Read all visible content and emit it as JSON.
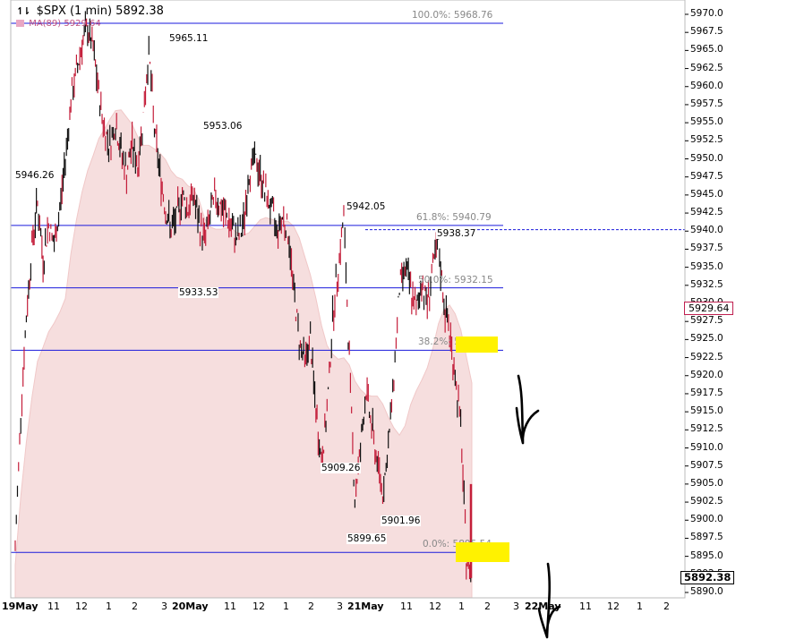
{
  "header": {
    "icon": "candlestick-icon",
    "title": "$SPX (1 min) 5892.38",
    "ma_label": "MA(89) 5929.64"
  },
  "colors": {
    "fib_line": "#1a1adc",
    "candle": "#c41e3a",
    "ma_fill": "#f6dede",
    "ma_line": "#f0c8c8",
    "highlight": "#fff200"
  },
  "current_tags": {
    "last": "5892.38",
    "ma": "5929.64"
  },
  "chart_data": {
    "type": "candlestick",
    "title": "$SPX (1 min)",
    "ylim": [
      5889,
      5971
    ],
    "y_ticks": [
      "5970.0",
      "5967.5",
      "5965.0",
      "5962.5",
      "5960.0",
      "5957.5",
      "5955.0",
      "5952.5",
      "5950.0",
      "5947.5",
      "5945.0",
      "5942.5",
      "5940.0",
      "5937.5",
      "5935.0",
      "5932.5",
      "5930.0",
      "5927.5",
      "5925.0",
      "5922.5",
      "5920.0",
      "5917.5",
      "5915.0",
      "5912.5",
      "5910.0",
      "5907.5",
      "5905.0",
      "5902.5",
      "5900.0",
      "5897.5",
      "5895.0",
      "5892.5",
      "5890.0"
    ],
    "x_ticks": [
      {
        "label": "19May",
        "bold": true
      },
      {
        "label": "11"
      },
      {
        "label": "12"
      },
      {
        "label": "1"
      },
      {
        "label": "2"
      },
      {
        "label": "3"
      },
      {
        "label": "20May",
        "bold": true
      },
      {
        "label": "11"
      },
      {
        "label": "12"
      },
      {
        "label": "1"
      },
      {
        "label": "2"
      },
      {
        "label": "3"
      },
      {
        "label": "21May",
        "bold": true
      },
      {
        "label": "11"
      },
      {
        "label": "12"
      },
      {
        "label": "1"
      },
      {
        "label": "2"
      },
      {
        "label": "3"
      },
      {
        "label": "22May",
        "bold": true
      },
      {
        "label": "11"
      },
      {
        "label": "12"
      },
      {
        "label": "1"
      },
      {
        "label": "2"
      }
    ],
    "fib_levels": [
      {
        "label": "100.0%: 5968.76",
        "value": 5968.76
      },
      {
        "label": "61.8%: 5940.79",
        "value": 5940.79
      },
      {
        "label": "50.0%: 5932.15",
        "value": 5932.15
      },
      {
        "label": "38.2%: 5923.51",
        "value": 5923.51
      },
      {
        "label": "0.0%: 5895.54",
        "value": 5895.54
      }
    ],
    "annotations": [
      {
        "text": "5946.26",
        "value": 5946.26
      },
      {
        "text": "5965.11",
        "value": 5965.11
      },
      {
        "text": "5953.06",
        "value": 5953.06
      },
      {
        "text": "5933.53",
        "value": 5933.53
      },
      {
        "text": "5942.05",
        "value": 5942.05
      },
      {
        "text": "5938.37",
        "value": 5938.37
      },
      {
        "text": "5909.26",
        "value": 5909.26
      },
      {
        "text": "5899.65",
        "value": 5899.65
      },
      {
        "text": "5901.96",
        "value": 5901.96
      }
    ],
    "dashed_level": 5940.2,
    "moving_average": {
      "name": "MA(89)",
      "last": 5929.64
    },
    "price_path": [
      5896,
      5915,
      5928,
      5938,
      5944,
      5936,
      5941,
      5938,
      5943,
      5950,
      5958,
      5962,
      5966,
      5968,
      5965,
      5959,
      5954,
      5952,
      5955,
      5951,
      5948,
      5952,
      5949,
      5956,
      5965,
      5954,
      5948,
      5943,
      5940,
      5942,
      5945,
      5943,
      5945,
      5941,
      5939,
      5942,
      5945,
      5943,
      5942,
      5940,
      5939,
      5941,
      5948,
      5950,
      5948,
      5945,
      5943,
      5940,
      5942,
      5940,
      5932,
      5925,
      5922,
      5925,
      5915,
      5908,
      5915,
      5928,
      5935,
      5942,
      5922,
      5903,
      5910,
      5918,
      5913,
      5908,
      5904,
      5910,
      5920,
      5932,
      5935,
      5932,
      5929,
      5933,
      5930,
      5935,
      5938,
      5930,
      5926,
      5920,
      5913,
      5895,
      5892
    ]
  }
}
